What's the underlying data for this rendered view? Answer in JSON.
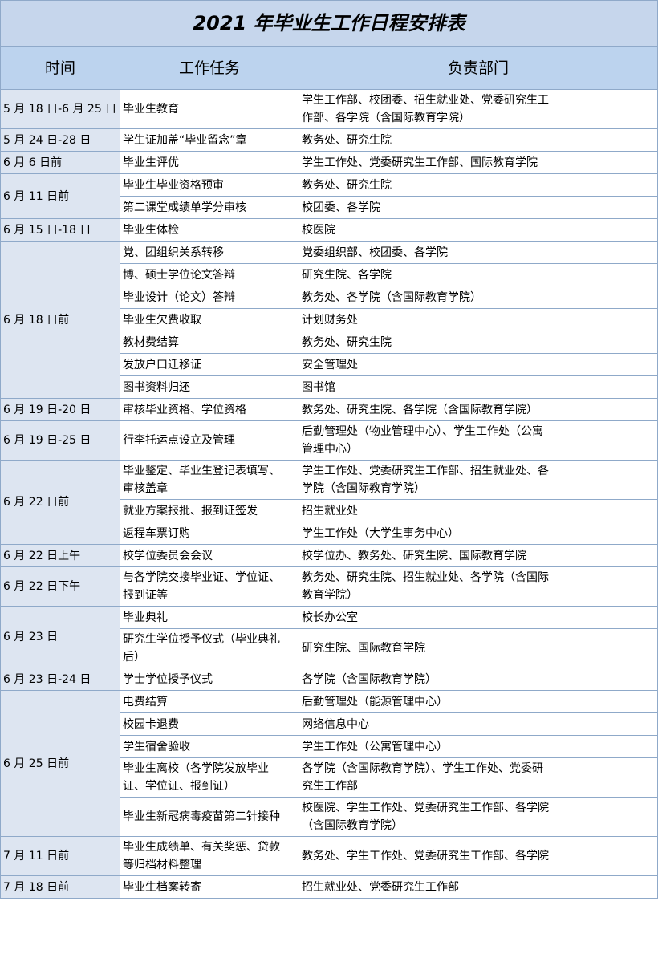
{
  "title": "2021 年毕业生工作日程安排表",
  "header": [
    "时间",
    "工作任务",
    "负责部门"
  ],
  "groups": [
    {
      "time": "5 月 18 日-6 月 25 日",
      "items": [
        {
          "task": "毕业生教育",
          "dept": "学生工作部、校团委、招生就业处、党委研究生工作部、各学院（含国际教育学院）"
        }
      ]
    },
    {
      "time": "5 月 24 日-28 日",
      "items": [
        {
          "task": "学生证加盖“毕业留念”章",
          "dept": "教务处、研究生院"
        }
      ]
    },
    {
      "time": "6 月 6 日前",
      "items": [
        {
          "task": "毕业生评优",
          "dept": "学生工作处、党委研究生工作部、国际教育学院"
        }
      ]
    },
    {
      "time": "6 月 11 日前",
      "items": [
        {
          "task": "毕业生毕业资格预审",
          "dept": "教务处、研究生院"
        },
        {
          "task": "第二课堂成绩单学分审核",
          "dept": "校团委、各学院"
        }
      ]
    },
    {
      "time": "6 月 15 日-18 日",
      "items": [
        {
          "task": "毕业生体检",
          "dept": "校医院"
        }
      ]
    },
    {
      "time": "6 月 18 日前",
      "items": [
        {
          "task": "党、团组织关系转移",
          "dept": "党委组织部、校团委、各学院"
        },
        {
          "task": "博、硕士学位论文答辩",
          "dept": "研究生院、各学院"
        },
        {
          "task": "毕业设计（论文）答辩",
          "dept": "教务处、各学院（含国际教育学院）"
        },
        {
          "task": "毕业生欠费收取",
          "dept": "计划财务处"
        },
        {
          "task": "教材费结算",
          "dept": "教务处、研究生院"
        },
        {
          "task": "发放户口迁移证",
          "dept": "安全管理处"
        },
        {
          "task": "图书资料归还",
          "dept": "图书馆"
        }
      ]
    },
    {
      "time": "6 月 19 日-20 日",
      "items": [
        {
          "task": "审核毕业资格、学位资格",
          "dept": "教务处、研究生院、各学院（含国际教育学院）"
        }
      ]
    },
    {
      "time": "6 月 19 日-25 日",
      "items": [
        {
          "task": "行李托运点设立及管理",
          "dept": "后勤管理处（物业管理中心）、学生工作处（公寓管理中心）"
        }
      ]
    },
    {
      "time": "6 月 22 日前",
      "items": [
        {
          "task": "毕业鉴定、毕业生登记表填写、审核盖章",
          "dept": "学生工作处、党委研究生工作部、招生就业处、各学院（含国际教育学院）"
        },
        {
          "task": "就业方案报批、报到证签发",
          "dept": "招生就业处"
        },
        {
          "task": "返程车票订购",
          "dept": "学生工作处（大学生事务中心）"
        }
      ]
    },
    {
      "time": "6 月 22 日上午",
      "items": [
        {
          "task": "校学位委员会会议",
          "dept": "校学位办、教务处、研究生院、国际教育学院"
        }
      ]
    },
    {
      "time": "6 月 22 日下午",
      "items": [
        {
          "task": "与各学院交接毕业证、学位证、报到证等",
          "dept": "教务处、研究生院、招生就业处、各学院（含国际教育学院）"
        }
      ]
    },
    {
      "time": "6 月 23 日",
      "items": [
        {
          "task": "毕业典礼",
          "dept": "校长办公室"
        },
        {
          "task": "研究生学位授予仪式（毕业典礼后）",
          "dept": "研究生院、国际教育学院"
        }
      ]
    },
    {
      "time": "6 月 23 日-24 日",
      "items": [
        {
          "task": "学士学位授予仪式",
          "dept": "各学院（含国际教育学院）"
        }
      ]
    },
    {
      "time": "6 月 25 日前",
      "items": [
        {
          "task": "电费结算",
          "dept": "后勤管理处（能源管理中心）"
        },
        {
          "task": "校园卡退费",
          "dept": "网络信息中心"
        },
        {
          "task": "学生宿舍验收",
          "dept": "学生工作处（公寓管理中心）"
        },
        {
          "task": "毕业生离校（各学院发放毕业证、学位证、报到证）",
          "dept": "各学院（含国际教育学院）、学生工作处、党委研究生工作部"
        },
        {
          "task": "毕业生新冠病毒疫苗第二针接种",
          "dept": "校医院、学生工作处、党委研究生工作部、各学院（含国际教育学院）"
        }
      ]
    },
    {
      "time": "7 月 11 日前",
      "items": [
        {
          "task": "毕业生成绩单、有关奖惩、贷款等归档材料整理",
          "dept": "教务处、学生工作处、党委研究生工作部、各学院"
        }
      ]
    },
    {
      "time": "7 月 18 日前",
      "items": [
        {
          "task": "毕业生档案转寄",
          "dept": "招生就业处、党委研究生工作部"
        }
      ]
    }
  ]
}
